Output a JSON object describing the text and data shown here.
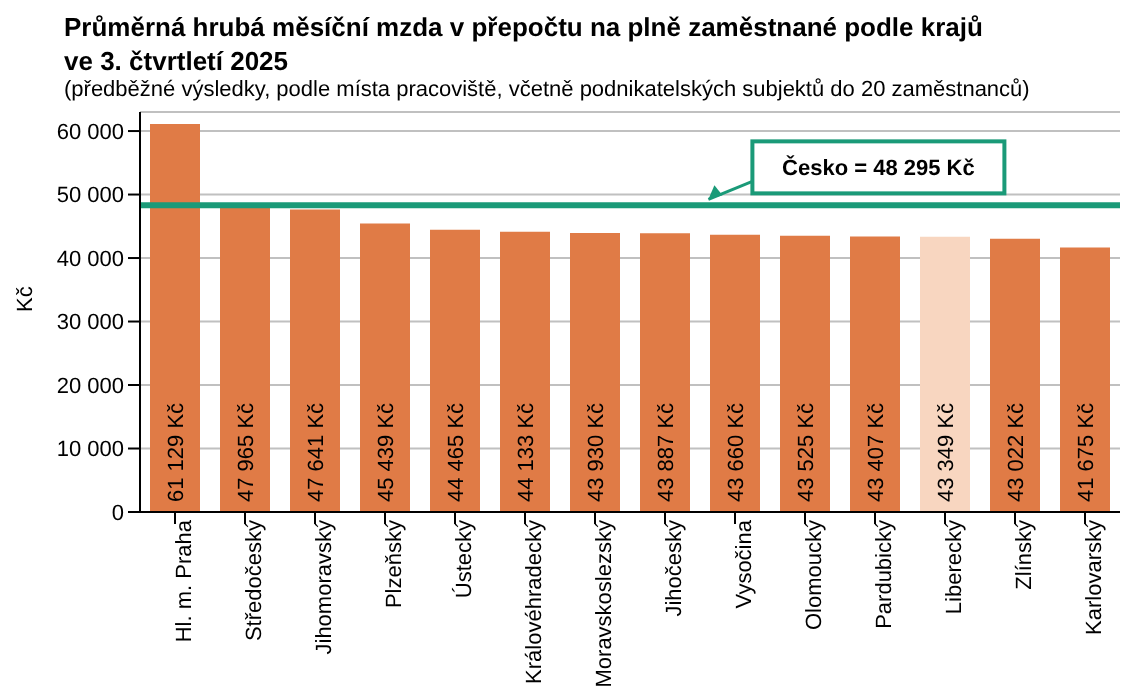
{
  "chart_data": {
    "type": "bar",
    "title": "Průměrná hrubá měsíční mzda v přepočtu na plně zaměstnané podle krajů ve 3. čtvrtletí 2025",
    "subtitle": "(předběžné výsledky, podle místa pracoviště, včetně podnikatelských subjektů do 20 zaměstnanců)",
    "ylabel": "Kč",
    "categories": [
      "Hl. m. Praha",
      "Středočeský",
      "Jihomoravský",
      "Plzeňský",
      "Ústecký",
      "Královéhradecký",
      "Moravskoslezský",
      "Jihočeský",
      "Vysočina",
      "Olomoucký",
      "Pardubický",
      "Liberecký",
      "Zlínský",
      "Karlovarský"
    ],
    "values": [
      61129,
      47965,
      47641,
      45439,
      44465,
      44133,
      43930,
      43887,
      43660,
      43525,
      43407,
      43349,
      43022,
      41675
    ],
    "value_labels": [
      "61 129 Kč",
      "47 965 Kč",
      "47 641 Kč",
      "45 439 Kč",
      "44 465 Kč",
      "44 133 Kč",
      "43 930 Kč",
      "43 887 Kč",
      "43 660 Kč",
      "43 525 Kč",
      "43 407 Kč",
      "43 349 Kč",
      "43 022 Kč",
      "41 675 Kč"
    ],
    "colors": [
      "#e07b46",
      "#e07b46",
      "#e07b46",
      "#e07b46",
      "#e07b46",
      "#e07b46",
      "#e07b46",
      "#e07b46",
      "#e07b46",
      "#e07b46",
      "#e07b46",
      "#f8d6c0",
      "#e07b46",
      "#e07b46"
    ],
    "ylim": [
      0,
      63000
    ],
    "yticks": [
      {
        "value": 0,
        "label": "0"
      },
      {
        "value": 10000,
        "label": "10 000"
      },
      {
        "value": 20000,
        "label": "20 000"
      },
      {
        "value": 30000,
        "label": "30 000"
      },
      {
        "value": 40000,
        "label": "40 000"
      },
      {
        "value": 50000,
        "label": "50 000"
      },
      {
        "value": 60000,
        "label": "60 000"
      }
    ],
    "grid": "y",
    "ref_lines": [
      {
        "axis": "y",
        "value": 48295,
        "label": "Česko = 48 295 Kč",
        "color": "#1a9a78"
      }
    ]
  }
}
